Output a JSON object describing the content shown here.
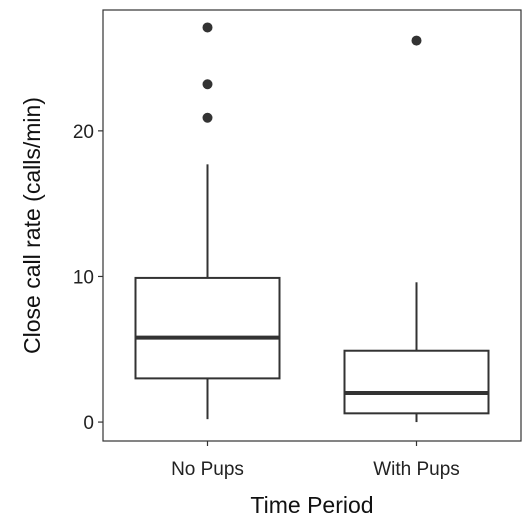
{
  "chart_data": {
    "type": "boxplot",
    "xlabel": "Time Period",
    "ylabel": "Close call rate (calls/min)",
    "ylim": [
      -1.3,
      28.3
    ],
    "yticks": [
      0,
      10,
      20
    ],
    "categories": [
      "No Pups",
      "With Pups"
    ],
    "boxes": [
      {
        "category": "No Pups",
        "whisker_low": 0.2,
        "q1": 3.0,
        "median": 5.8,
        "q3": 9.9,
        "whisker_high": 17.7,
        "outliers": [
          20.9,
          23.2,
          27.1
        ]
      },
      {
        "category": "With Pups",
        "whisker_low": 0.0,
        "q1": 0.6,
        "median": 2.0,
        "q3": 4.9,
        "whisker_high": 9.6,
        "outliers": [
          26.2
        ]
      }
    ],
    "grid": false,
    "legend": "none",
    "colors": {
      "stroke": "#333333",
      "outlier": "#333333",
      "panel_border": "#333333",
      "background": "#ffffff"
    }
  }
}
